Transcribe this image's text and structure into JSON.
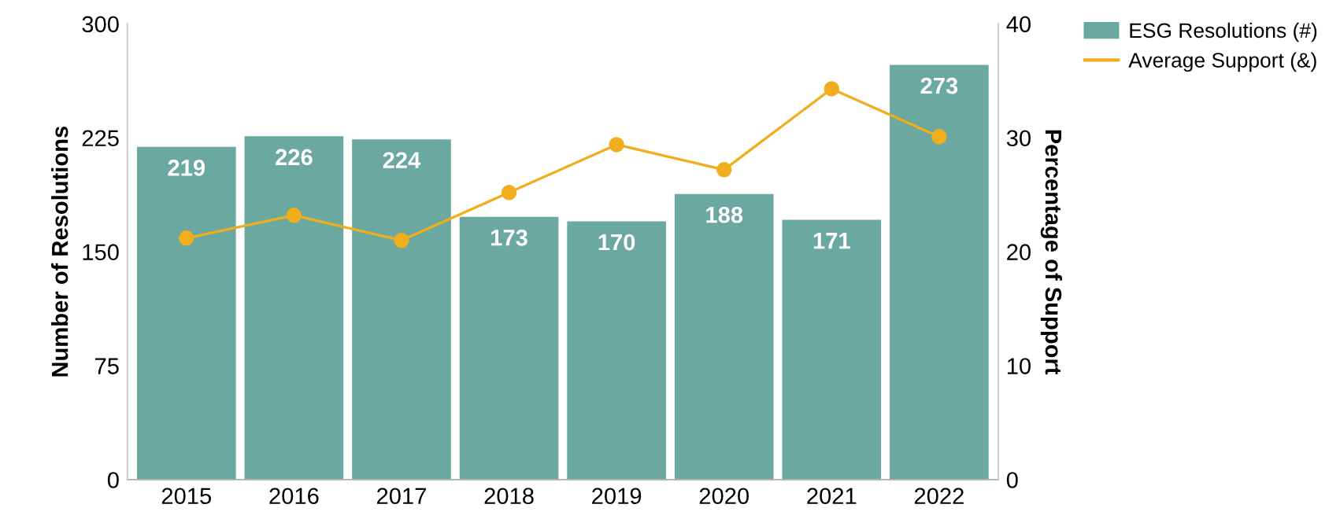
{
  "chart_data": {
    "type": "bar",
    "categories": [
      "2015",
      "2016",
      "2017",
      "2018",
      "2019",
      "2020",
      "2021",
      "2022"
    ],
    "series": [
      {
        "name": "ESG Resolutions (#)",
        "color": "#6ba8a0",
        "values": [
          219,
          226,
          224,
          173,
          170,
          188,
          171,
          273
        ],
        "data_labels": true
      },
      {
        "name": "Average Support (&)",
        "type": "line",
        "axis": "y2",
        "color": "#f0ad1e",
        "values": [
          21.2,
          23.2,
          21.0,
          25.2,
          29.4,
          27.2,
          34.3,
          30.1
        ],
        "marker": "circle"
      }
    ],
    "ylabel": "Number of Resolutions",
    "y2label": "Percentage of Support",
    "ylim": [
      0,
      300
    ],
    "yticks": [
      0,
      75,
      150,
      225,
      300
    ],
    "y2lim": [
      0,
      40
    ],
    "y2ticks": [
      0,
      10,
      20,
      30,
      40
    ],
    "grid": false,
    "legend": "top right"
  }
}
